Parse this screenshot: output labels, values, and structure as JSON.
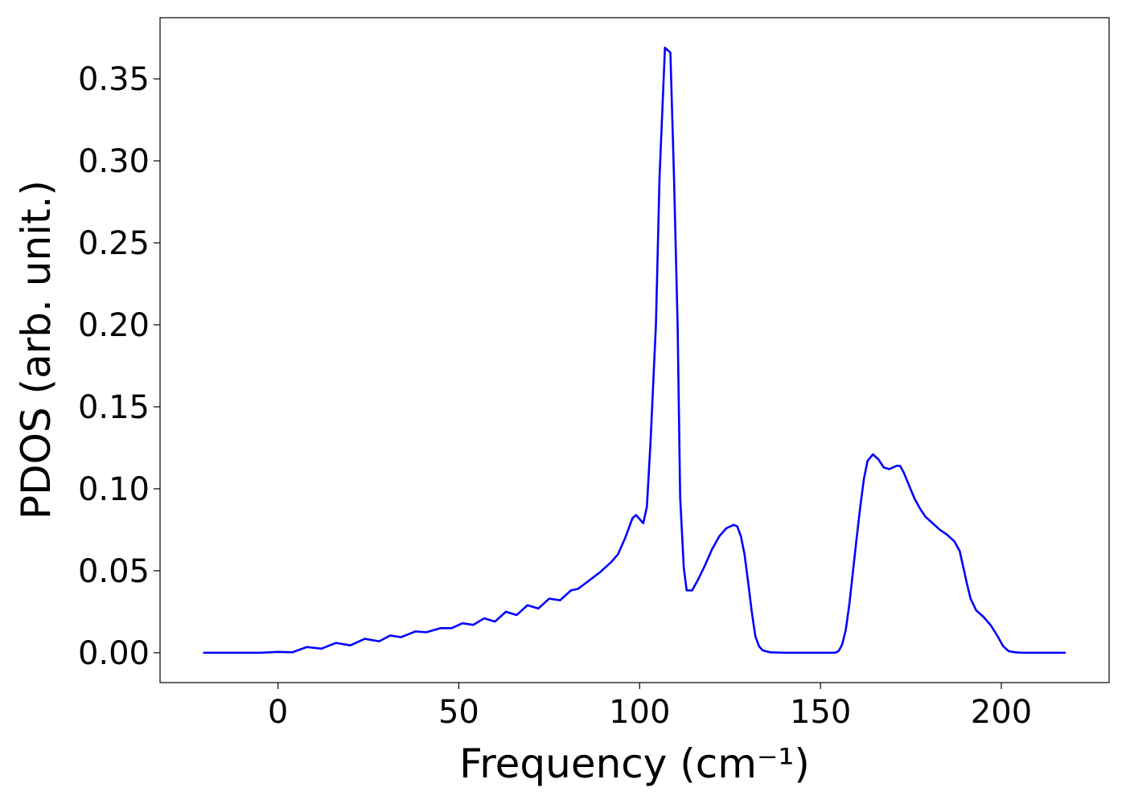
{
  "chart_data": {
    "type": "line",
    "x_label": "Frequency (cm⁻¹)",
    "y_label": "PDOS (arb. unit.)",
    "xlim": [
      -32.6,
      229.8
    ],
    "ylim": [
      -0.0182,
      0.3873
    ],
    "xticks": [
      0,
      50,
      100,
      150,
      200
    ],
    "yticks": [
      {
        "value": 0,
        "label": "0.00"
      },
      {
        "value": 0.05,
        "label": "0.05"
      },
      {
        "value": 0.1,
        "label": "0.10"
      },
      {
        "value": 0.15,
        "label": "0.15"
      },
      {
        "value": 0.2,
        "label": "0.20"
      },
      {
        "value": 0.25,
        "label": "0.25"
      },
      {
        "value": 0.3,
        "label": "0.30"
      },
      {
        "value": 0.35,
        "label": "0.35"
      }
    ],
    "grid": false,
    "x": [
      -20.7,
      -5,
      0,
      4,
      8,
      12,
      16,
      20,
      24,
      28,
      31,
      34,
      38,
      41,
      45,
      48,
      51,
      54,
      57,
      60,
      63,
      66,
      69,
      72,
      75,
      78,
      81,
      83,
      86,
      89,
      92,
      94,
      96,
      98,
      99,
      101,
      102,
      103,
      104.5,
      105.5,
      107,
      108.5,
      109.5,
      110.5,
      111.2,
      112.2,
      113,
      114.5,
      116,
      118,
      120,
      122,
      124,
      126,
      127,
      128,
      129,
      130,
      131,
      132,
      133,
      134,
      136,
      140,
      154,
      155,
      156,
      157,
      158,
      159,
      160,
      161,
      162,
      163,
      164.5,
      166,
      167.5,
      169,
      171,
      172,
      173,
      174.5,
      176,
      177.5,
      179,
      181,
      183,
      185,
      187,
      188.5,
      189.5,
      190.5,
      191.5,
      193,
      195,
      197,
      199,
      200.5,
      202,
      204,
      206,
      217.8
    ],
    "series": [
      {
        "name": "PDOS",
        "color": "#0000ff",
        "values": [
          0,
          0,
          0.0005,
          0.0003,
          0.0035,
          0.0025,
          0.006,
          0.0045,
          0.0085,
          0.007,
          0.0105,
          0.0095,
          0.013,
          0.0125,
          0.015,
          0.015,
          0.018,
          0.017,
          0.021,
          0.019,
          0.025,
          0.023,
          0.029,
          0.027,
          0.033,
          0.032,
          0.038,
          0.039,
          0.044,
          0.049,
          0.055,
          0.06,
          0.07,
          0.082,
          0.084,
          0.079,
          0.089,
          0.128,
          0.2,
          0.29,
          0.369,
          0.366,
          0.29,
          0.2,
          0.095,
          0.052,
          0.038,
          0.038,
          0.044,
          0.053,
          0.063,
          0.071,
          0.076,
          0.078,
          0.077,
          0.071,
          0.06,
          0.043,
          0.025,
          0.01,
          0.004,
          0.0015,
          0.0003,
          0,
          0,
          0.001,
          0.005,
          0.014,
          0.03,
          0.05,
          0.07,
          0.089,
          0.106,
          0.117,
          0.121,
          0.118,
          0.113,
          0.112,
          0.114,
          0.114,
          0.11,
          0.102,
          0.094,
          0.088,
          0.083,
          0.079,
          0.075,
          0.072,
          0.068,
          0.062,
          0.052,
          0.042,
          0.033,
          0.026,
          0.022,
          0.017,
          0.01,
          0.004,
          0.001,
          0.0002,
          0,
          0
        ]
      }
    ]
  }
}
